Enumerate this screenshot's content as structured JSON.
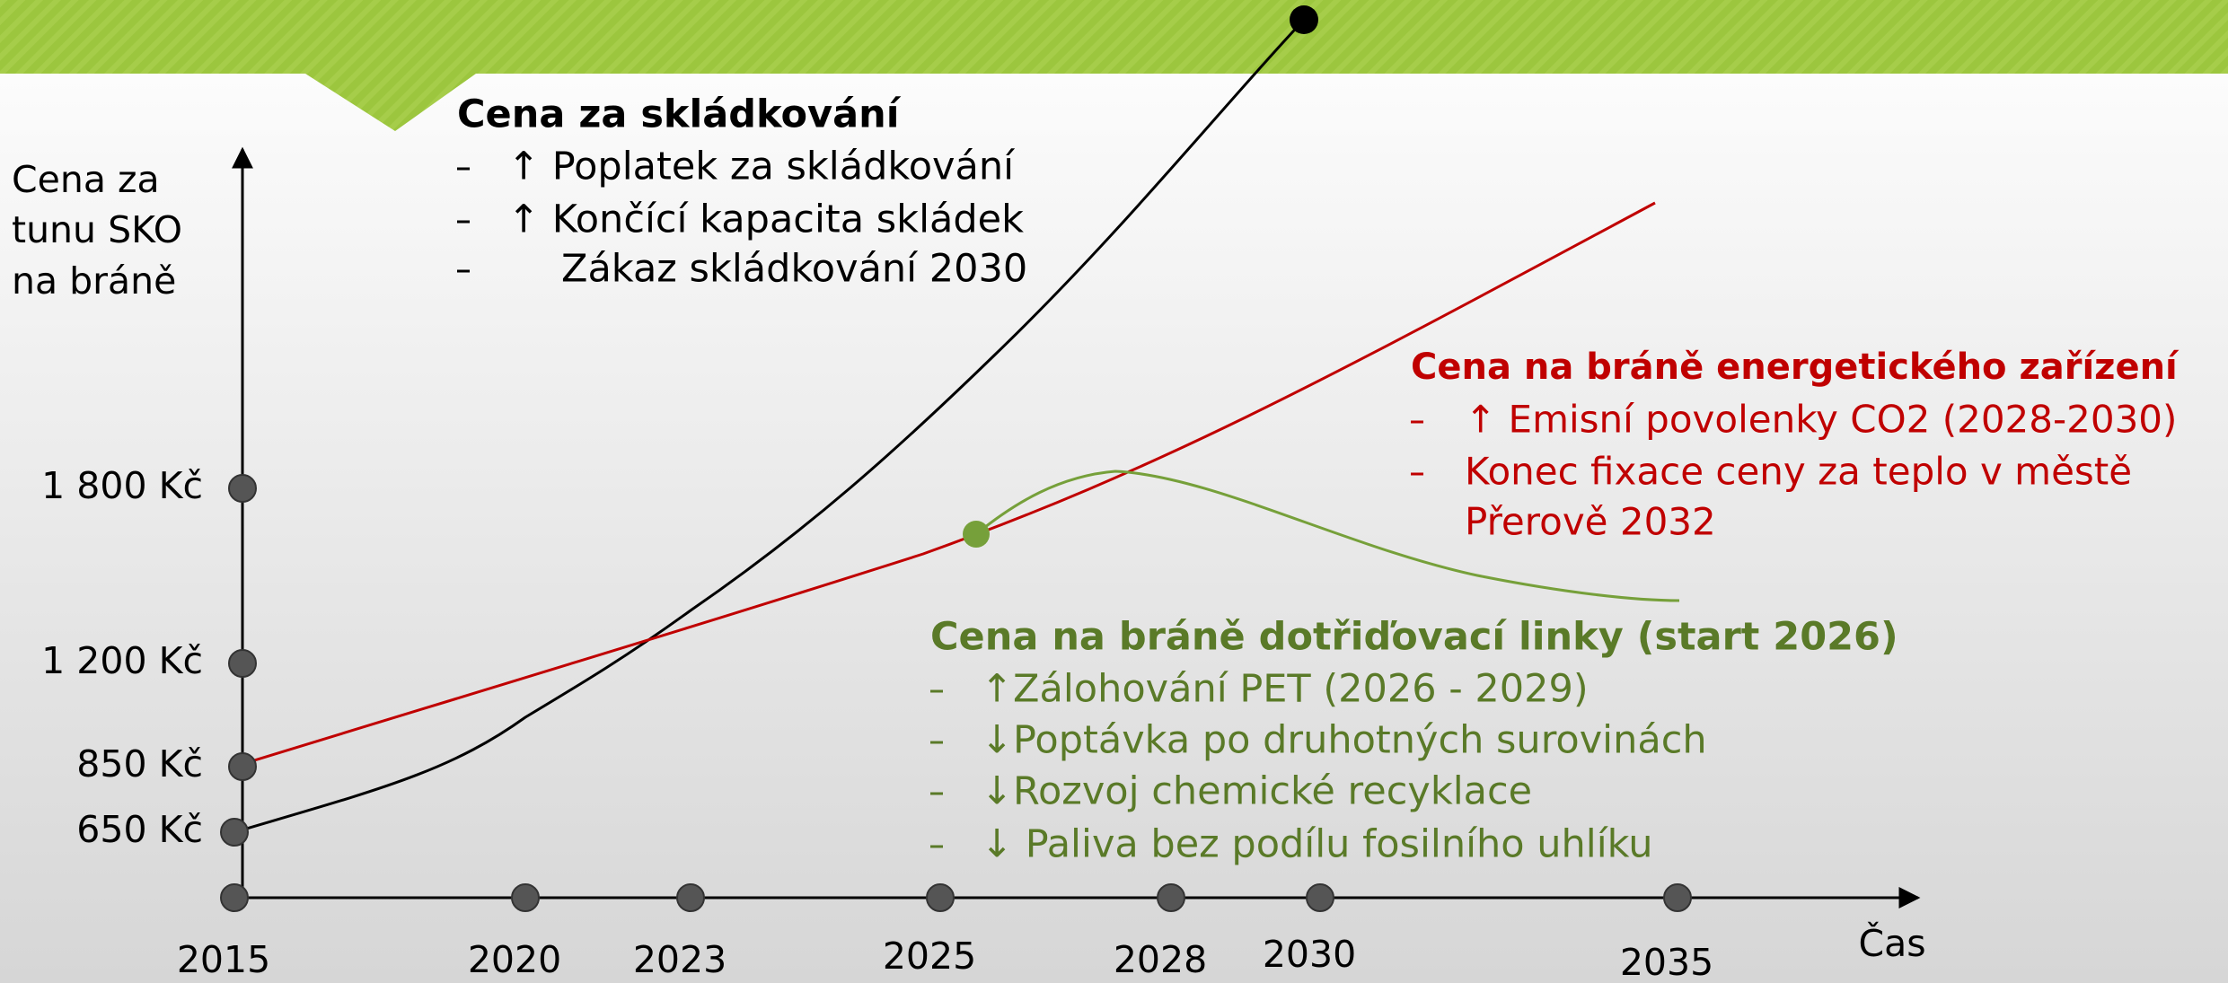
{
  "y_axis": {
    "label": [
      "Cena za",
      "tunu SKO",
      "na bráně"
    ],
    "ticks": [
      "1 800 Kč",
      "1 200 Kč",
      "850 Kč",
      "650 Kč"
    ]
  },
  "x_axis": {
    "label": "Čas",
    "ticks": [
      "2015",
      "2020",
      "2023",
      "2025",
      "2028",
      "2030",
      "2035"
    ]
  },
  "blocks": [
    {
      "title": "Cena za skládkování",
      "items": [
        "↑ Poplatek za skládkování",
        "↑ Končící kapacita skládek",
        "Zákaz skládkování 2030"
      ]
    },
    {
      "title": "Cena na bráně energetického zařízení",
      "items": [
        "↑ Emisní povolenky CO2 (2028-2030)",
        "Konec fixace ceny za teplo v městě",
        "Přerově 2032"
      ]
    },
    {
      "title": "Cena na bráně dotřiďovací linky (start 2026)",
      "items": [
        "↑Zálohování PET (2026 - 2029)",
        "↓Poptávka po druhotných surovinách",
        "↓Rozvoj chemické recyklace",
        "↓ Paliva bez podílu fosilního uhlíku"
      ]
    }
  ]
}
